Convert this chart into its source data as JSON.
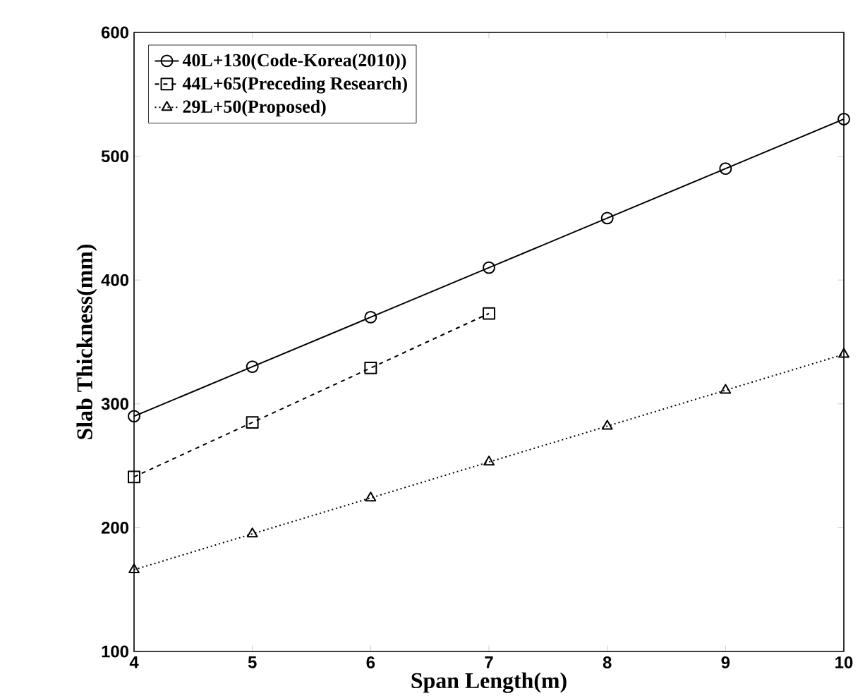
{
  "chart_data": {
    "type": "line",
    "xlabel": "Span Length(m)",
    "ylabel": "Slab Thickness(mm)",
    "x": [
      4,
      5,
      6,
      7,
      8,
      9,
      10
    ],
    "series": [
      {
        "name": "40L+130(Code-Korea(2010))",
        "color": "#000000",
        "marker": "circle",
        "line_style": "solid",
        "values": [
          290,
          330,
          370,
          410,
          450,
          490,
          530
        ]
      },
      {
        "name": "44L+65(Preceding Research)",
        "color": "#000000",
        "marker": "square",
        "line_style": "dashed",
        "values": [
          241,
          285,
          329,
          373,
          null,
          null,
          null
        ]
      },
      {
        "name": "29L+50(Proposed)",
        "color": "#000000",
        "marker": "triangle",
        "line_style": "dotted",
        "values": [
          166,
          195,
          224,
          253,
          282,
          311,
          340
        ]
      }
    ],
    "xlim": [
      4,
      10
    ],
    "xticks": [
      4,
      5,
      6,
      7,
      8,
      9,
      10
    ],
    "ylim": [
      100,
      600
    ],
    "yticks": [
      100,
      200,
      300,
      400,
      500,
      600
    ],
    "grid": false,
    "legend": "top left"
  }
}
